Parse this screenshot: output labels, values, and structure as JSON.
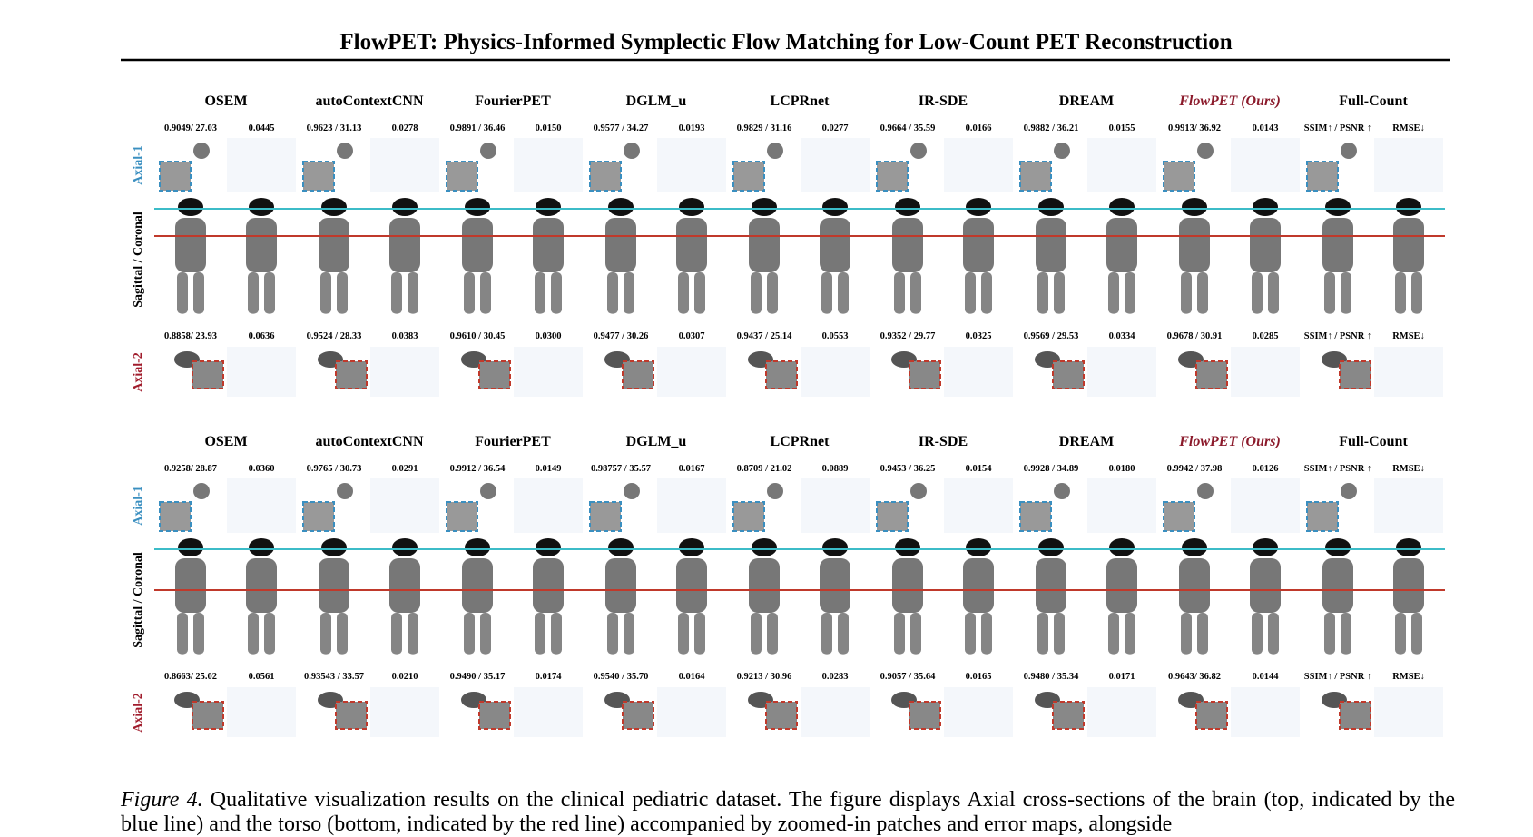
{
  "header": {
    "title": "FlowPET: Physics-Informed Symplectic Flow Matching for Low-Count PET Reconstruction"
  },
  "panels": [
    {
      "methods": [
        "OSEM",
        "autoContextCNN",
        "FourierPET",
        "DGLM_u",
        "LCPRnet",
        "IR-SDE",
        "DREAM",
        "FlowPET (Ours)",
        "Full-Count"
      ],
      "row_labels": [
        "Axial-1",
        "Sagittal / Coronal",
        "Axial-2"
      ],
      "axial_1": [
        [
          "0.9049/ 27.03",
          "0.0445"
        ],
        [
          "0.9623 / 31.13",
          "0.0278"
        ],
        [
          "0.9891 / 36.46",
          "0.0150"
        ],
        [
          "0.9577 / 34.27",
          "0.0193"
        ],
        [
          "0.9829 / 31.16",
          "0.0277"
        ],
        [
          "0.9664 / 35.59",
          "0.0166"
        ],
        [
          "0.9882 / 36.21",
          "0.0155"
        ],
        [
          "0.9913/ 36.92",
          "0.0143"
        ],
        [
          "SSIM↑ / PSNR ↑",
          "RMSE↓"
        ]
      ],
      "axial_2": [
        [
          "0.8858/ 23.93",
          "0.0636"
        ],
        [
          "0.9524 / 28.33",
          "0.0383"
        ],
        [
          "0.9610 / 30.45",
          "0.0300"
        ],
        [
          "0.9477 / 30.26",
          "0.0307"
        ],
        [
          "0.9437 / 25.14",
          "0.0553"
        ],
        [
          "0.9352 / 29.77",
          "0.0325"
        ],
        [
          "0.9569 / 29.53",
          "0.0334"
        ],
        [
          "0.9678 / 30.91",
          "0.0285"
        ],
        [
          "SSIM↑ / PSNR ↑",
          "RMSE↓"
        ]
      ]
    },
    {
      "methods": [
        "OSEM",
        "autoContextCNN",
        "FourierPET",
        "DGLM_u",
        "LCPRnet",
        "IR-SDE",
        "DREAM",
        "FlowPET (Ours)",
        "Full-Count"
      ],
      "row_labels": [
        "Axial-1",
        "Sagittal / Coronal",
        "Axial-2"
      ],
      "axial_1": [
        [
          "0.9258/ 28.87",
          "0.0360"
        ],
        [
          "0.9765 / 30.73",
          "0.0291"
        ],
        [
          "0.9912 / 36.54",
          "0.0149"
        ],
        [
          "0.98757 / 35.57",
          "0.0167"
        ],
        [
          "0.8709 / 21.02",
          "0.0889"
        ],
        [
          "0.9453 / 36.25",
          "0.0154"
        ],
        [
          "0.9928 / 34.89",
          "0.0180"
        ],
        [
          "0.9942 / 37.98",
          "0.0126"
        ],
        [
          "SSIM↑ / PSNR ↑",
          "RMSE↓"
        ]
      ],
      "axial_2": [
        [
          "0.8663/ 25.02",
          "0.0561"
        ],
        [
          "0.93543 / 33.57",
          "0.0210"
        ],
        [
          "0.9490 / 35.17",
          "0.0174"
        ],
        [
          "0.9540 / 35.70",
          "0.0164"
        ],
        [
          "0.9213 / 30.96",
          "0.0283"
        ],
        [
          "0.9057 / 35.64",
          "0.0165"
        ],
        [
          "0.9480 / 35.34",
          "0.0171"
        ],
        [
          "0.9643/ 36.82",
          "0.0144"
        ],
        [
          "SSIM↑ / PSNR ↑",
          "RMSE↓"
        ]
      ]
    }
  ],
  "caption": {
    "label": "Figure 4.",
    "text": "Qualitative visualization results on the clinical pediatric dataset. The figure displays Axial cross-sections of the brain (top, indicated by the blue line) and the torso (bottom, indicated by the red line) accompanied by zoomed-in patches and error maps, alongside"
  }
}
